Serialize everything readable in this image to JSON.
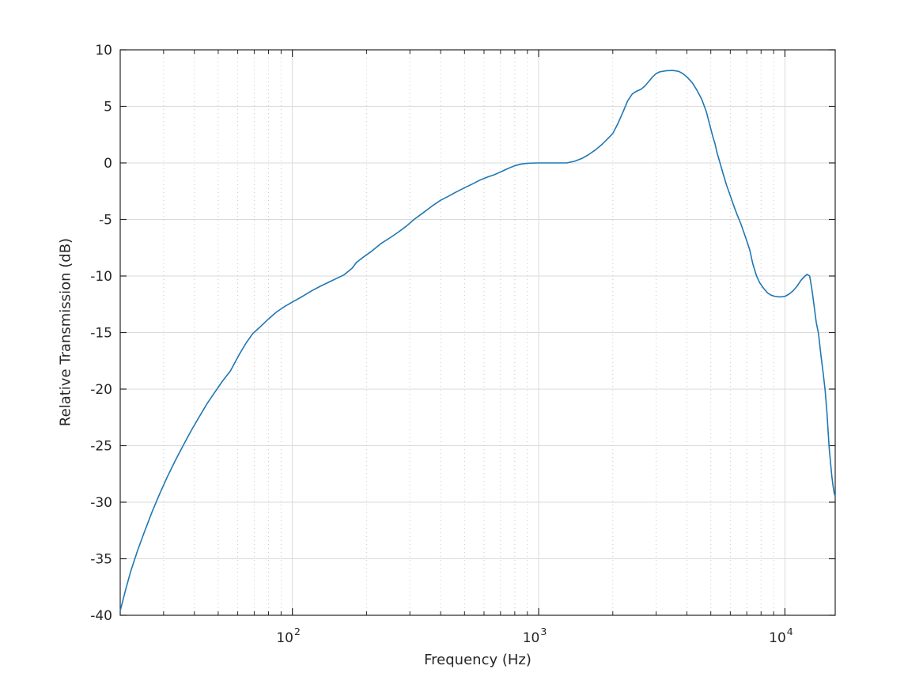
{
  "figure": {
    "background": "#ffffff"
  },
  "chart_data": {
    "type": "line",
    "title": "",
    "xlabel": "Frequency (Hz)",
    "ylabel": "Relative Transmission (dB)",
    "x_scale": "log",
    "xlim": [
      20,
      16000
    ],
    "ylim": [
      -40,
      10
    ],
    "grid": {
      "major": "solid",
      "minor": "dotted",
      "visible": true
    },
    "legend": "none",
    "y_ticks": [
      10,
      5,
      0,
      -5,
      -10,
      -15,
      -20,
      -25,
      -30,
      -35,
      -40
    ],
    "x_major_ticks": [
      {
        "value": 100,
        "base": "10",
        "exp": "2"
      },
      {
        "value": 1000,
        "base": "10",
        "exp": "3"
      },
      {
        "value": 10000,
        "base": "10",
        "exp": "4"
      }
    ],
    "x_minor_ticks": [
      30,
      40,
      50,
      60,
      70,
      80,
      90,
      200,
      300,
      400,
      500,
      600,
      700,
      800,
      900,
      2000,
      3000,
      4000,
      5000,
      6000,
      7000,
      8000,
      9000
    ],
    "series": [
      {
        "name": "relative-transmission",
        "color": "#1f77b4",
        "points": [
          [
            20,
            -39.6
          ],
          [
            21,
            -37.8
          ],
          [
            22,
            -36.2
          ],
          [
            23.5,
            -34.3
          ],
          [
            25,
            -32.7
          ],
          [
            27,
            -30.8
          ],
          [
            29,
            -29.2
          ],
          [
            31,
            -27.8
          ],
          [
            33.5,
            -26.3
          ],
          [
            36,
            -25.0
          ],
          [
            39,
            -23.6
          ],
          [
            42,
            -22.4
          ],
          [
            45,
            -21.3
          ],
          [
            48,
            -20.4
          ],
          [
            52,
            -19.3
          ],
          [
            56,
            -18.4
          ],
          [
            61,
            -16.9
          ],
          [
            65,
            -15.9
          ],
          [
            69,
            -15.1
          ],
          [
            74,
            -14.5
          ],
          [
            80,
            -13.8
          ],
          [
            86,
            -13.2
          ],
          [
            93,
            -12.7
          ],
          [
            100,
            -12.3
          ],
          [
            110,
            -11.8
          ],
          [
            120,
            -11.3
          ],
          [
            130,
            -10.9
          ],
          [
            142,
            -10.5
          ],
          [
            155,
            -10.1
          ],
          [
            162,
            -9.9
          ],
          [
            175,
            -9.3
          ],
          [
            182,
            -8.8
          ],
          [
            195,
            -8.3
          ],
          [
            210,
            -7.8
          ],
          [
            230,
            -7.1
          ],
          [
            250,
            -6.6
          ],
          [
            270,
            -6.1
          ],
          [
            290,
            -5.6
          ],
          [
            312,
            -5.0
          ],
          [
            340,
            -4.4
          ],
          [
            370,
            -3.8
          ],
          [
            400,
            -3.3
          ],
          [
            430,
            -2.95
          ],
          [
            460,
            -2.6
          ],
          [
            500,
            -2.2
          ],
          [
            540,
            -1.85
          ],
          [
            580,
            -1.5
          ],
          [
            620,
            -1.25
          ],
          [
            660,
            -1.05
          ],
          [
            700,
            -0.8
          ],
          [
            750,
            -0.5
          ],
          [
            800,
            -0.25
          ],
          [
            850,
            -0.1
          ],
          [
            900,
            -0.03
          ],
          [
            1000,
            0.0
          ],
          [
            1100,
            0.0
          ],
          [
            1200,
            0.0
          ],
          [
            1300,
            0.0
          ],
          [
            1400,
            0.15
          ],
          [
            1500,
            0.4
          ],
          [
            1600,
            0.75
          ],
          [
            1700,
            1.15
          ],
          [
            1800,
            1.6
          ],
          [
            1900,
            2.1
          ],
          [
            2000,
            2.6
          ],
          [
            2100,
            3.5
          ],
          [
            2200,
            4.5
          ],
          [
            2300,
            5.5
          ],
          [
            2400,
            6.1
          ],
          [
            2500,
            6.35
          ],
          [
            2600,
            6.5
          ],
          [
            2700,
            6.8
          ],
          [
            2800,
            7.2
          ],
          [
            2900,
            7.6
          ],
          [
            3000,
            7.9
          ],
          [
            3100,
            8.05
          ],
          [
            3300,
            8.15
          ],
          [
            3500,
            8.18
          ],
          [
            3700,
            8.1
          ],
          [
            3850,
            7.9
          ],
          [
            4000,
            7.6
          ],
          [
            4200,
            7.1
          ],
          [
            4400,
            6.4
          ],
          [
            4600,
            5.6
          ],
          [
            4800,
            4.5
          ],
          [
            5000,
            3.0
          ],
          [
            5100,
            2.3
          ],
          [
            5200,
            1.7
          ],
          [
            5300,
            0.9
          ],
          [
            5450,
            0.0
          ],
          [
            5600,
            -0.9
          ],
          [
            5800,
            -2.0
          ],
          [
            6000,
            -2.9
          ],
          [
            6200,
            -3.8
          ],
          [
            6400,
            -4.6
          ],
          [
            6600,
            -5.3
          ],
          [
            6800,
            -6.1
          ],
          [
            7000,
            -6.9
          ],
          [
            7200,
            -7.7
          ],
          [
            7400,
            -8.9
          ],
          [
            7670,
            -10.0
          ],
          [
            7900,
            -10.6
          ],
          [
            8200,
            -11.1
          ],
          [
            8500,
            -11.5
          ],
          [
            8800,
            -11.7
          ],
          [
            9100,
            -11.8
          ],
          [
            9500,
            -11.85
          ],
          [
            10000,
            -11.8
          ],
          [
            10400,
            -11.6
          ],
          [
            10800,
            -11.3
          ],
          [
            11200,
            -10.9
          ],
          [
            11600,
            -10.4
          ],
          [
            12000,
            -10.05
          ],
          [
            12300,
            -9.85
          ],
          [
            12600,
            -10.0
          ],
          [
            12830,
            -11.0
          ],
          [
            13000,
            -11.9
          ],
          [
            13200,
            -13.0
          ],
          [
            13400,
            -14.1
          ],
          [
            13690,
            -15.1
          ],
          [
            14000,
            -17.0
          ],
          [
            14300,
            -18.6
          ],
          [
            14560,
            -20.1
          ],
          [
            14800,
            -22.0
          ],
          [
            15110,
            -25.1
          ],
          [
            15300,
            -26.4
          ],
          [
            15500,
            -27.7
          ],
          [
            15690,
            -28.6
          ],
          [
            15850,
            -29.2
          ],
          [
            16000,
            -29.5
          ]
        ]
      }
    ]
  },
  "style": {
    "line_color": "#1f77b4",
    "axis_color": "#262626",
    "tick_label_color": "#262626",
    "major_grid_color": "#dbdbdb",
    "minor_grid_color": "#c8c8c8",
    "plot_background": "#ffffff"
  }
}
